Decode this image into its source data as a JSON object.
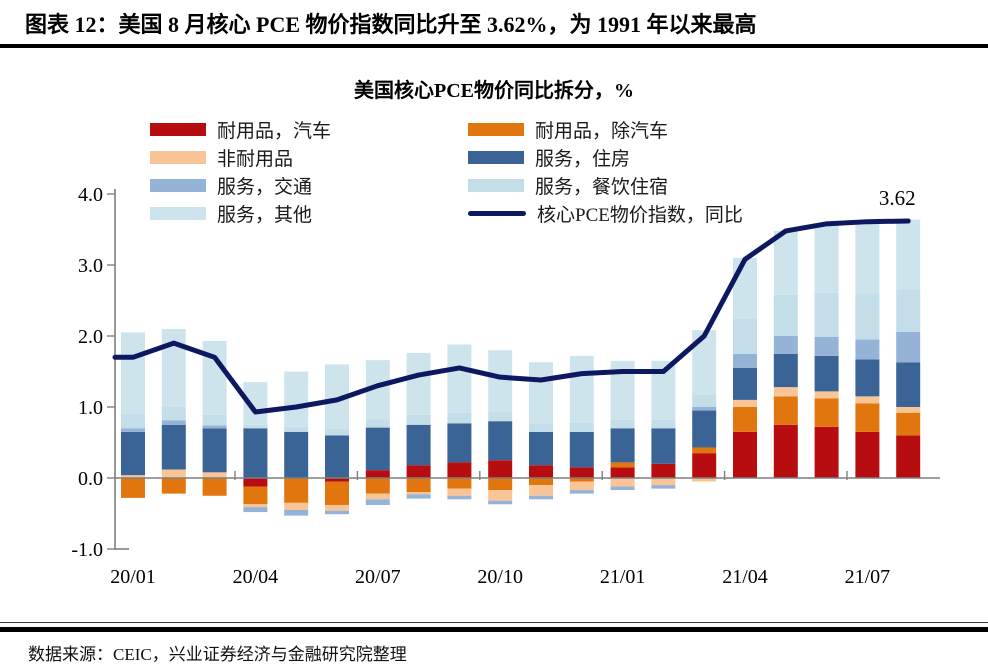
{
  "report": {
    "title": "图表 12：美国 8 月核心 PCE 物价指数同比升至 3.62%，为 1991 年以来最高",
    "source": "数据来源：CEIC，兴业证券经济与金融研究院整理"
  },
  "colors": {
    "durables_autos": "#b80d10",
    "durables_ex_autos": "#e2760e",
    "nondurables": "#f9c596",
    "services_housing": "#3b6496",
    "services_transport": "#95b3d7",
    "services_dining_lodging": "#c3dde9",
    "services_other": "#cde4ed",
    "core_pce_line": "#0e1860",
    "axis": "#7f7f7f"
  },
  "chart_data": {
    "type": "bar",
    "subtype": "stacked-bar-with-line",
    "title": "美国核心PCE物价同比拆分，%",
    "grid": false,
    "legend_position": "top",
    "ylim": [
      -1.0,
      4.0
    ],
    "y_ticks": [
      4.0,
      3.0,
      2.0,
      1.0,
      0.0,
      -1.0
    ],
    "categories": [
      "20/01",
      "20/02",
      "20/03",
      "20/04",
      "20/05",
      "20/06",
      "20/07",
      "20/08",
      "20/09",
      "20/10",
      "20/11",
      "20/12",
      "21/01",
      "21/02",
      "21/03",
      "21/04",
      "21/05",
      "21/06",
      "21/07",
      "21/08"
    ],
    "x_tick_labels": [
      "20/01",
      "20/04",
      "20/07",
      "20/10",
      "21/01",
      "21/04",
      "21/07"
    ],
    "annotation": {
      "text": "3.62",
      "month": "21/08",
      "value": 3.62
    },
    "series": [
      {
        "name": "耐用品，汽车",
        "type": "bar",
        "color": "#b80d10",
        "values": [
          0.0,
          0.0,
          0.0,
          -0.12,
          0.0,
          -0.05,
          0.11,
          0.18,
          0.22,
          0.25,
          0.18,
          0.15,
          0.15,
          0.2,
          0.35,
          0.65,
          0.75,
          0.72,
          0.65,
          0.6
        ]
      },
      {
        "name": "耐用品，除汽车",
        "type": "bar",
        "color": "#e2760e",
        "values": [
          -0.28,
          -0.22,
          -0.25,
          -0.25,
          -0.35,
          -0.33,
          -0.22,
          -0.2,
          -0.15,
          -0.17,
          -0.1,
          -0.05,
          0.07,
          0.0,
          0.08,
          0.35,
          0.4,
          0.4,
          0.4,
          0.32
        ]
      },
      {
        "name": "非耐用品",
        "type": "bar",
        "color": "#f9c596",
        "values": [
          0.04,
          0.12,
          0.08,
          -0.04,
          -0.1,
          -0.08,
          -0.08,
          -0.03,
          -0.1,
          -0.15,
          -0.15,
          -0.12,
          -0.12,
          -0.1,
          -0.05,
          0.1,
          0.13,
          0.1,
          0.1,
          0.08
        ]
      },
      {
        "name": "服务，住房",
        "type": "bar",
        "color": "#3b6496",
        "values": [
          0.61,
          0.63,
          0.62,
          0.7,
          0.65,
          0.6,
          0.6,
          0.57,
          0.55,
          0.55,
          0.47,
          0.5,
          0.48,
          0.5,
          0.52,
          0.45,
          0.47,
          0.5,
          0.52,
          0.63
        ]
      },
      {
        "name": "服务，交通",
        "type": "bar",
        "color": "#95b3d7",
        "values": [
          0.05,
          0.06,
          0.04,
          -0.07,
          -0.08,
          -0.05,
          -0.08,
          -0.06,
          -0.05,
          -0.05,
          -0.05,
          -0.05,
          -0.05,
          -0.05,
          0.05,
          0.2,
          0.25,
          0.27,
          0.28,
          0.43
        ]
      },
      {
        "name": "服务，餐饮住宿",
        "type": "bar",
        "color": "#c3dde9",
        "values": [
          0.2,
          0.2,
          0.15,
          0.05,
          0.07,
          0.1,
          0.12,
          0.14,
          0.15,
          0.13,
          0.12,
          0.13,
          0.12,
          0.12,
          0.18,
          0.5,
          0.58,
          0.62,
          0.65,
          0.6
        ]
      },
      {
        "name": "服务，其他",
        "type": "bar",
        "color": "#cde4ed",
        "values": [
          1.15,
          1.09,
          1.04,
          0.6,
          0.78,
          0.9,
          0.83,
          0.87,
          0.96,
          0.87,
          0.86,
          0.94,
          0.83,
          0.83,
          0.9,
          0.85,
          0.9,
          0.96,
          1.0,
          0.98
        ]
      },
      {
        "name": "核心PCE物价指数，同比",
        "type": "line",
        "color": "#0e1860",
        "values": [
          1.7,
          1.9,
          1.7,
          0.93,
          1.0,
          1.1,
          1.3,
          1.45,
          1.55,
          1.42,
          1.38,
          1.47,
          1.5,
          1.5,
          2.0,
          3.08,
          3.48,
          3.58,
          3.61,
          3.62
        ]
      }
    ]
  }
}
